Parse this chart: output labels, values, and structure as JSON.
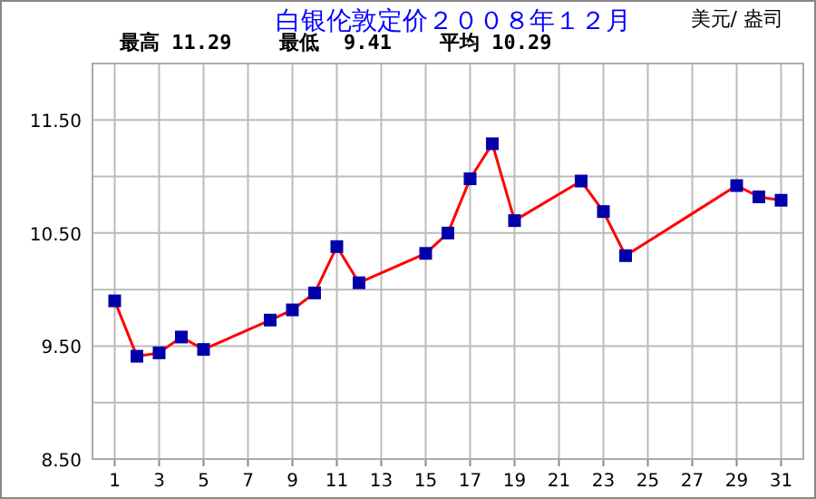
{
  "chart_data": {
    "type": "line",
    "title": "白银伦敦定价２００８年１２月",
    "subtitle": "最高 11.29    最低  9.41    平均 10.29",
    "ylabel": "美元/ 盎司",
    "x": [
      1,
      2,
      3,
      4,
      5,
      8,
      9,
      10,
      11,
      12,
      15,
      16,
      17,
      18,
      19,
      22,
      23,
      24,
      29,
      30,
      31
    ],
    "series": [
      {
        "color": "#ff0000",
        "values": [
          9.9,
          9.41,
          9.44,
          9.58,
          9.47,
          9.73,
          9.82,
          9.97,
          10.38,
          10.06,
          10.32,
          10.5,
          10.98,
          11.29,
          10.61,
          10.96,
          10.69,
          10.3,
          10.92,
          10.82,
          10.79
        ]
      }
    ],
    "xlim": [
      0,
      32
    ],
    "ylim": [
      8.5,
      12.0
    ],
    "xticks": [
      1,
      3,
      5,
      7,
      9,
      11,
      13,
      15,
      17,
      19,
      21,
      23,
      25,
      27,
      29,
      31
    ],
    "yticks": [
      {
        "value": 8.5,
        "label": "8.50"
      },
      {
        "value": 9.0,
        "label": null
      },
      {
        "value": 9.5,
        "label": "9.50"
      },
      {
        "value": 10.0,
        "label": null
      },
      {
        "value": 10.5,
        "label": "10.50"
      },
      {
        "value": 11.0,
        "label": null
      },
      {
        "value": 11.5,
        "label": "11.50"
      },
      {
        "value": 12.0,
        "label": null
      }
    ],
    "grid": true,
    "marker": "square",
    "line_style": "solid"
  }
}
